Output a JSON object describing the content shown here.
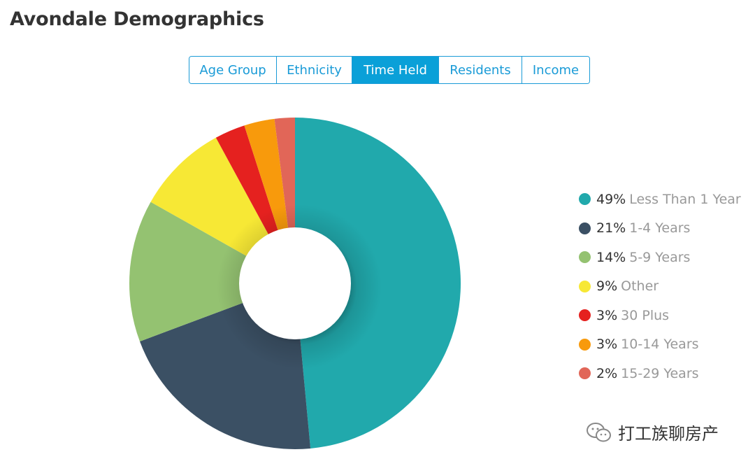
{
  "header": {
    "title": "Avondale Demographics"
  },
  "tabs": [
    {
      "label": "Age Group",
      "active": false
    },
    {
      "label": "Ethnicity",
      "active": false
    },
    {
      "label": "Time Held",
      "active": true
    },
    {
      "label": "Residents",
      "active": false
    },
    {
      "label": "Income",
      "active": false
    }
  ],
  "chart_data": {
    "type": "pie",
    "donut": true,
    "title": "",
    "legend_position": "right",
    "slices": [
      {
        "label": "Less Than 1 Year",
        "value": 49,
        "pct_text": "49%",
        "color": "#21a9ac"
      },
      {
        "label": "1-4 Years",
        "value": 21,
        "pct_text": "21%",
        "color": "#3b5064"
      },
      {
        "label": "5-9 Years",
        "value": 14,
        "pct_text": "14%",
        "color": "#94c271"
      },
      {
        "label": "Other",
        "value": 9,
        "pct_text": "9%",
        "color": "#f7e835"
      },
      {
        "label": "30 Plus",
        "value": 3,
        "pct_text": "3%",
        "color": "#e5211f"
      },
      {
        "label": "10-14 Years",
        "value": 3,
        "pct_text": "3%",
        "color": "#f89a0c"
      },
      {
        "label": "15-29 Years",
        "value": 2,
        "pct_text": "2%",
        "color": "#e16658"
      }
    ]
  },
  "watermark": {
    "text": "打工族聊房产",
    "icon": "wechat-icon"
  },
  "colors": {
    "accent": "#1a9bd7",
    "tab_active_bg": "#0aa0d8",
    "title": "#333333",
    "legend_label": "#999999"
  }
}
